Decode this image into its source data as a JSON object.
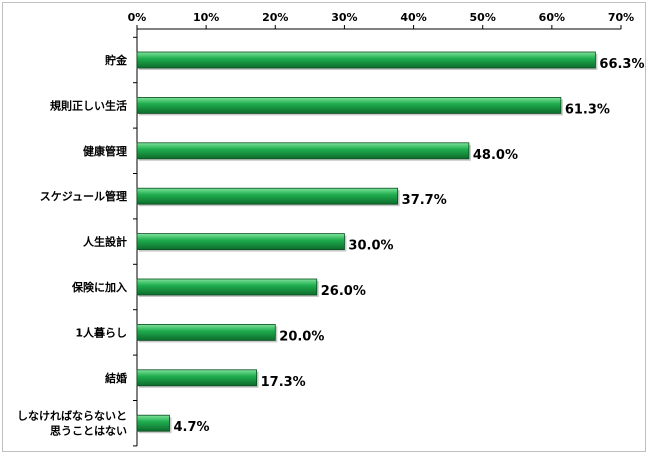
{
  "chart_data": {
    "type": "bar",
    "orientation": "horizontal",
    "title": "",
    "xlabel": "",
    "ylabel": "",
    "xlim": [
      0,
      70
    ],
    "x_ticks": [
      "0%",
      "10%",
      "20%",
      "30%",
      "40%",
      "50%",
      "60%",
      "70%"
    ],
    "x_axis_position": "top",
    "grid": false,
    "legend": "none",
    "categories": [
      [
        "貯金"
      ],
      [
        "規則正しい生活"
      ],
      [
        "健康管理"
      ],
      [
        "スケジュール管理"
      ],
      [
        "人生設計"
      ],
      [
        "保険に加入"
      ],
      [
        "1人暮らし"
      ],
      [
        "結婚"
      ],
      [
        "しなければならないと",
        "思うことはない"
      ]
    ],
    "values": [
      66.3,
      61.3,
      48.0,
      37.7,
      30.0,
      26.0,
      20.0,
      17.3,
      4.7
    ],
    "data_labels": [
      "66.3%",
      "61.3%",
      "48.0%",
      "37.7%",
      "30.0%",
      "26.0%",
      "20.0%",
      "17.3%",
      "4.7%"
    ],
    "colors": {
      "bar_fill": "#1fae4f",
      "bar_highlight": "#7fe39b",
      "bar_shadow": "#0d6b2c",
      "bar_outline": "#0a4d1f",
      "axis": "#000000",
      "frame": "#bfbfbf"
    }
  }
}
